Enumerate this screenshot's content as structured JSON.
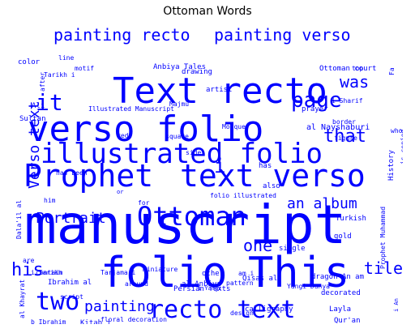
{
  "title": "Ottoman Words",
  "colors": {
    "word": "#0000ff",
    "background": "#ffffff",
    "title": "#000000"
  },
  "words": [
    {
      "text": "manuscript",
      "orientation": "horizontal"
    },
    {
      "text": "folio",
      "orientation": "horizontal"
    },
    {
      "text": "This",
      "orientation": "horizontal"
    },
    {
      "text": "Text recto",
      "orientation": "horizontal"
    },
    {
      "text": "verso folio",
      "orientation": "horizontal"
    },
    {
      "text": "Prophet",
      "orientation": "horizontal"
    },
    {
      "text": "text verso",
      "orientation": "horizontal"
    },
    {
      "text": "illustrated folio",
      "orientation": "horizontal"
    },
    {
      "text": "Ottoman",
      "orientation": "horizontal"
    },
    {
      "text": "recto text",
      "orientation": "horizontal"
    },
    {
      "text": "painting recto",
      "orientation": "horizontal"
    },
    {
      "text": "painting verso",
      "orientation": "horizontal"
    },
    {
      "text": "page",
      "orientation": "horizontal"
    },
    {
      "text": "two",
      "orientation": "horizontal"
    },
    {
      "text": "his",
      "orientation": "horizontal"
    },
    {
      "text": "it",
      "orientation": "horizontal"
    },
    {
      "text": "was",
      "orientation": "horizontal"
    },
    {
      "text": "an album",
      "orientation": "horizontal"
    },
    {
      "text": "that",
      "orientation": "horizontal"
    },
    {
      "text": "Portrait",
      "orientation": "horizontal"
    },
    {
      "text": "one",
      "orientation": "horizontal"
    },
    {
      "text": "tile",
      "orientation": "horizontal"
    },
    {
      "text": "painting",
      "orientation": "horizontal"
    },
    {
      "text": "Verso text",
      "orientation": "vertical"
    },
    {
      "text": "i",
      "orientation": "horizontal"
    },
    {
      "text": "Illustrated Manuscript",
      "orientation": "horizontal"
    },
    {
      "text": "Anbiya Tales",
      "orientation": "horizontal"
    },
    {
      "text": "Ottoman court",
      "orientation": "horizontal"
    },
    {
      "text": "al Nayshaburi",
      "orientation": "horizontal"
    },
    {
      "text": "folio illustrated",
      "orientation": "horizontal"
    },
    {
      "text": "Turkish",
      "orientation": "horizontal"
    },
    {
      "text": "Dala'il al",
      "orientation": "vertical"
    },
    {
      "text": "Qisas al",
      "orientation": "horizontal"
    },
    {
      "text": "dragon An am",
      "orientation": "horizontal"
    },
    {
      "text": "Prophet Muhammad",
      "orientation": "vertical"
    },
    {
      "text": "History",
      "orientation": "vertical"
    },
    {
      "text": "Persian Texts",
      "orientation": "horizontal"
    },
    {
      "text": "calligraphy",
      "orientation": "horizontal"
    },
    {
      "text": "decorated",
      "orientation": "horizontal"
    },
    {
      "text": "Layla",
      "orientation": "horizontal"
    },
    {
      "text": "Qur'an",
      "orientation": "horizontal"
    },
    {
      "text": "Ishaq b",
      "orientation": "horizontal"
    },
    {
      "text": "floral decoration",
      "orientation": "horizontal"
    },
    {
      "text": "Ibrahim al",
      "orientation": "horizontal"
    },
    {
      "text": "al Anbiya",
      "orientation": "horizontal"
    },
    {
      "text": "Tarjama i",
      "orientation": "horizontal"
    },
    {
      "text": "miniature",
      "orientation": "horizontal"
    },
    {
      "text": "contain",
      "orientation": "horizontal"
    },
    {
      "text": "Sultan",
      "orientation": "horizontal"
    },
    {
      "text": "has been",
      "orientation": "horizontal"
    },
    {
      "text": "Majmu",
      "orientation": "horizontal"
    },
    {
      "text": "color",
      "orientation": "horizontal"
    },
    {
      "text": "line",
      "orientation": "horizontal"
    },
    {
      "text": "motif",
      "orientation": "horizontal"
    },
    {
      "text": "Tarikh i",
      "orientation": "horizontal"
    },
    {
      "text": "drawing",
      "orientation": "horizontal"
    },
    {
      "text": "Mosque",
      "orientation": "horizontal"
    },
    {
      "text": "artist",
      "orientation": "horizontal"
    },
    {
      "text": "prayer",
      "orientation": "horizontal"
    },
    {
      "text": "figure",
      "orientation": "horizontal"
    },
    {
      "text": "border",
      "orientation": "horizontal"
    },
    {
      "text": "i Sharif",
      "orientation": "horizontal"
    },
    {
      "text": "top",
      "orientation": "horizontal"
    },
    {
      "text": "square",
      "orientation": "horizontal"
    },
    {
      "text": "side",
      "orientation": "horizontal"
    },
    {
      "text": "red",
      "orientation": "horizontal"
    },
    {
      "text": "Ali",
      "orientation": "horizontal"
    },
    {
      "text": "also",
      "orientation": "horizontal"
    },
    {
      "text": "has",
      "orientation": "horizontal"
    },
    {
      "text": "gold",
      "orientation": "horizontal"
    },
    {
      "text": "single",
      "orientation": "horizontal"
    },
    {
      "text": "other",
      "orientation": "horizontal"
    },
    {
      "text": "am i",
      "orientation": "horizontal"
    },
    {
      "text": "pattern",
      "orientation": "horizontal"
    },
    {
      "text": "around",
      "orientation": "horizontal"
    },
    {
      "text": "script",
      "orientation": "horizontal"
    },
    {
      "text": "Kitab i",
      "orientation": "horizontal"
    },
    {
      "text": "i Tarikh",
      "orientation": "horizontal"
    },
    {
      "text": "are",
      "orientation": "horizontal"
    },
    {
      "text": "him",
      "orientation": "horizontal"
    },
    {
      "text": "for",
      "orientation": "horizontal"
    },
    {
      "text": "or",
      "orientation": "horizontal"
    },
    {
      "text": "who",
      "orientation": "horizontal"
    },
    {
      "text": "Yangi Dunya",
      "orientation": "horizontal"
    },
    {
      "text": "i Yangi",
      "orientation": "horizontal"
    },
    {
      "text": "design",
      "orientation": "horizontal"
    },
    {
      "text": "b Ibrahim",
      "orientation": "horizontal"
    },
    {
      "text": "al Khayrat",
      "orientation": "vertical"
    },
    {
      "text": "is copied",
      "orientation": "vertical"
    },
    {
      "text": "after",
      "orientation": "vertical"
    },
    {
      "text": "i An",
      "orientation": "vertical"
    },
    {
      "text": "Fa",
      "orientation": "vertical"
    }
  ]
}
